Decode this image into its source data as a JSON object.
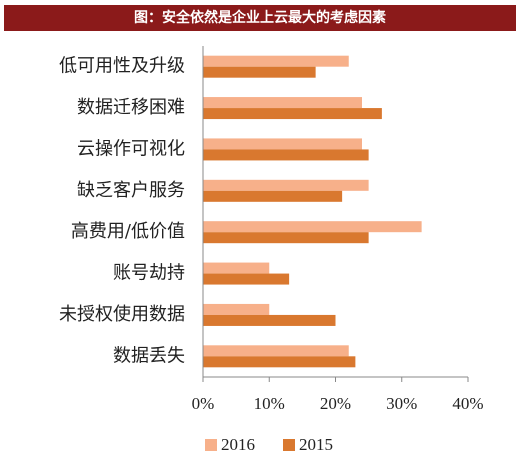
{
  "chart_data": {
    "type": "bar",
    "orientation": "horizontal",
    "title": "图：安全依然是企业上云最大的考虑因素",
    "categories": [
      "低可用性及升级",
      "数据迁移困难",
      "云操作可视化",
      "缺乏客户服务",
      "高费用/低价值",
      "账号劫持",
      "未授权使用数据",
      "数据丢失"
    ],
    "series": [
      {
        "name": "2016",
        "color": "#f7b08a",
        "values": [
          22,
          24,
          24,
          25,
          33,
          10,
          10,
          22
        ]
      },
      {
        "name": "2015",
        "color": "#d9782f",
        "values": [
          17,
          27,
          25,
          21,
          25,
          13,
          20,
          23
        ]
      }
    ],
    "xlim": [
      0,
      40
    ],
    "xticks": [
      {
        "value": 0,
        "label": "0%"
      },
      {
        "value": 10,
        "label": "10%"
      },
      {
        "value": 20,
        "label": "20%"
      },
      {
        "value": 30,
        "label": "30%"
      },
      {
        "value": 40,
        "label": "40%"
      }
    ],
    "grid": false,
    "legend": "bottom"
  }
}
